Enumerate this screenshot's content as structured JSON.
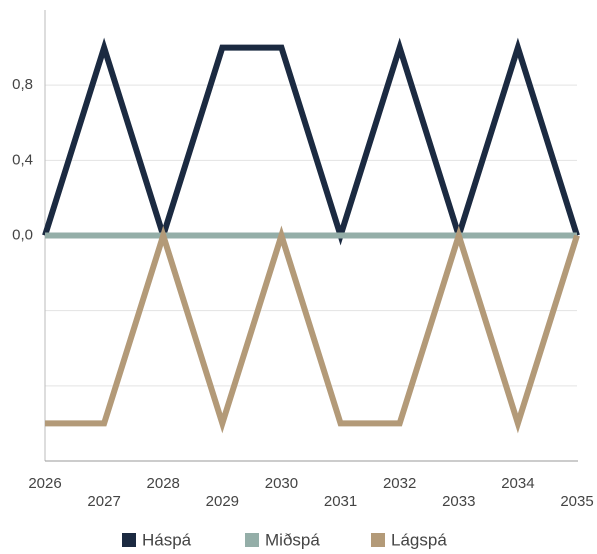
{
  "chart_data": {
    "type": "line",
    "categories": [
      "2026",
      "2027",
      "2028",
      "2029",
      "2030",
      "2031",
      "2032",
      "2033",
      "2034",
      "2035"
    ],
    "series": [
      {
        "name": "Háspá",
        "color": "#1b2a41",
        "values": [
          0,
          1,
          0,
          1,
          1,
          0,
          1,
          0,
          1,
          0
        ]
      },
      {
        "name": "Miðspá",
        "color": "#94aea8",
        "values": [
          0,
          0,
          0,
          0,
          0,
          0,
          0,
          0,
          0,
          0
        ]
      },
      {
        "name": "Lágspá",
        "color": "#b39a78",
        "values": [
          -1,
          -1,
          0,
          -1,
          0,
          -1,
          -1,
          0,
          -1,
          0
        ]
      }
    ],
    "ylim": [
      -1.2,
      1.2
    ],
    "yticks": [
      {
        "value": -1.2,
        "label": null
      },
      {
        "value": -0.8,
        "label": null
      },
      {
        "value": -0.4,
        "label": null
      },
      {
        "value": 0,
        "label": "0,0"
      },
      {
        "value": 0.4,
        "label": "0,4"
      },
      {
        "value": 0.8,
        "label": "0,8"
      }
    ],
    "grid": true,
    "legend": "bottom"
  }
}
